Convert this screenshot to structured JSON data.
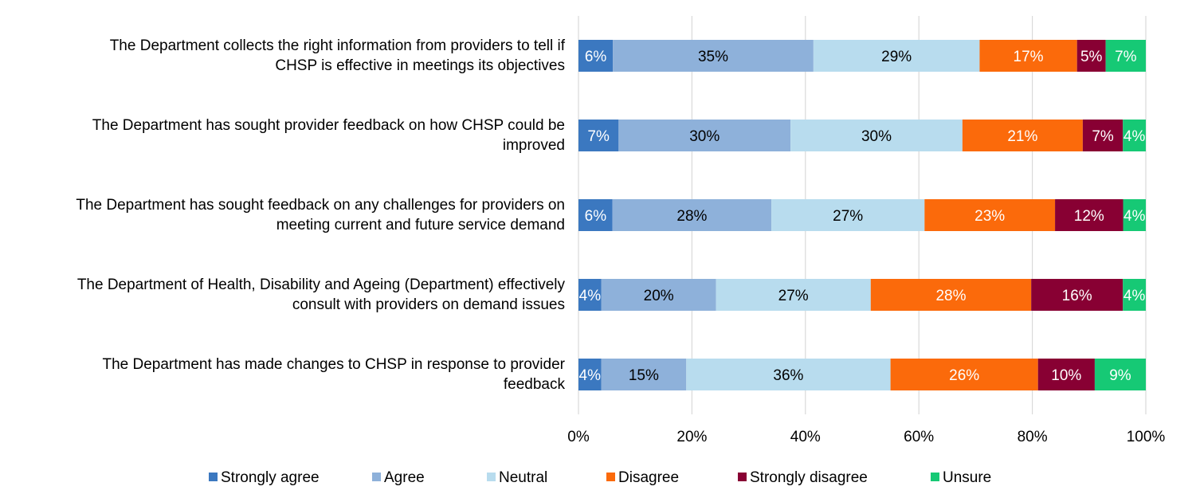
{
  "chart_data": {
    "type": "bar",
    "orientation": "horizontal",
    "stacked": "percent",
    "categories": [
      [
        "The Department collects the right information from providers to tell if",
        "CHSP is effective in meetings its objectives"
      ],
      [
        "The Department has sought provider feedback on how CHSP could be",
        "improved"
      ],
      [
        "The Department has sought feedback on any challenges for providers on",
        "meeting current and future service demand"
      ],
      [
        "The Department of Health, Disability and Ageing (Department) effectively",
        "consult with providers on demand issues"
      ],
      [
        "The Department has made changes to CHSP in response to provider",
        "feedback"
      ]
    ],
    "series": [
      {
        "name": "Strongly agree",
        "color": "#3b78c0",
        "label_color": "#ffffff",
        "values": [
          6,
          7,
          6,
          4,
          4
        ]
      },
      {
        "name": "Agree",
        "color": "#8eb1da",
        "label_color": "#000000",
        "values": [
          35,
          30,
          28,
          20,
          15
        ]
      },
      {
        "name": "Neutral",
        "color": "#b8dcee",
        "label_color": "#000000",
        "values": [
          29,
          30,
          27,
          27,
          36
        ]
      },
      {
        "name": "Disagree",
        "color": "#fb6a0b",
        "label_color": "#ffffff",
        "values": [
          17,
          21,
          23,
          28,
          26
        ]
      },
      {
        "name": "Strongly disagree",
        "color": "#880033",
        "label_color": "#ffffff",
        "values": [
          5,
          7,
          12,
          16,
          10
        ]
      },
      {
        "name": "Unsure",
        "color": "#16c975",
        "label_color": "#ffffff",
        "values": [
          7,
          4,
          4,
          4,
          9
        ]
      }
    ],
    "x_ticks": [
      "0%",
      "20%",
      "40%",
      "60%",
      "80%",
      "100%"
    ],
    "xlim": [
      0,
      100
    ],
    "grid": "vertical",
    "legend": "bottom"
  }
}
